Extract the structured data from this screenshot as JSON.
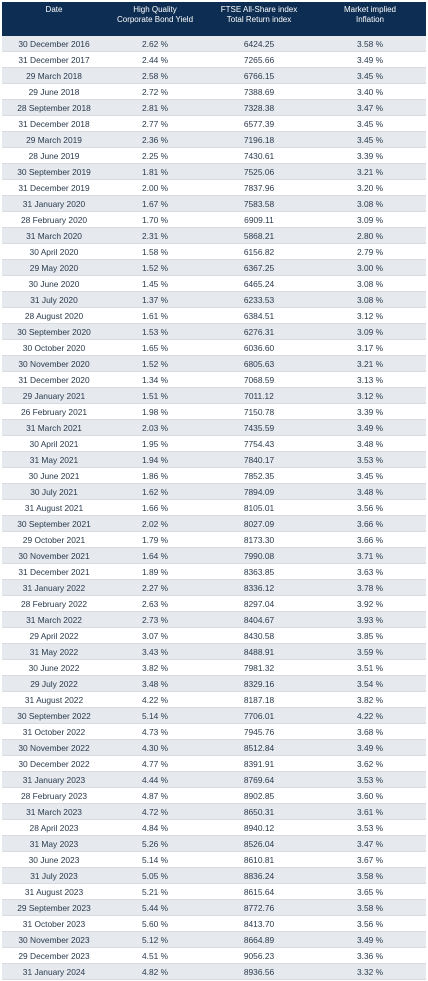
{
  "table": {
    "header": [
      [
        "Date"
      ],
      [
        "High Quality",
        "Corporate Bond Yield"
      ],
      [
        "FTSE All-Share index",
        "Total Return index"
      ],
      [
        "Market implied",
        "Inflation"
      ]
    ],
    "rows": [
      [
        "30 December 2016",
        "2.62 %",
        "6424.25",
        "3.58 %"
      ],
      [
        "31 December 2017",
        "2.44 %",
        "7265.66",
        "3.49 %"
      ],
      [
        "29 March 2018",
        "2.58 %",
        "6766.15",
        "3.45 %"
      ],
      [
        "29 June 2018",
        "2.72 %",
        "7388.69",
        "3.40 %"
      ],
      [
        "28 September 2018",
        "2.81 %",
        "7328.38",
        "3.47 %"
      ],
      [
        "31 December 2018",
        "2.77 %",
        "6577.39",
        "3.45 %"
      ],
      [
        "29 March 2019",
        "2.36 %",
        "7196.18",
        "3.45 %"
      ],
      [
        "28 June 2019",
        "2.25 %",
        "7430.61",
        "3.39 %"
      ],
      [
        "30 September 2019",
        "1.81 %",
        "7525.06",
        "3.21 %"
      ],
      [
        "31 December 2019",
        "2.00 %",
        "7837.96",
        "3.20 %"
      ],
      [
        "31 January 2020",
        "1.67 %",
        "7583.58",
        "3.08 %"
      ],
      [
        "28 February 2020",
        "1.70 %",
        "6909.11",
        "3.09 %"
      ],
      [
        "31 March 2020",
        "2.31 %",
        "5868.21",
        "2.80 %"
      ],
      [
        "30 April 2020",
        "1.58 %",
        "6156.82",
        "2.79 %"
      ],
      [
        "29 May 2020",
        "1.52 %",
        "6367.25",
        "3.00 %"
      ],
      [
        "30 June 2020",
        "1.45 %",
        "6465.24",
        "3.08 %"
      ],
      [
        "31 July 2020",
        "1.37 %",
        "6233.53",
        "3.08 %"
      ],
      [
        "28 August 2020",
        "1.61 %",
        "6384.51",
        "3.12 %"
      ],
      [
        "30 September 2020",
        "1.53 %",
        "6276.31",
        "3.09 %"
      ],
      [
        "30 October 2020",
        "1.65 %",
        "6036.60",
        "3.17 %"
      ],
      [
        "30 November 2020",
        "1.52 %",
        "6805.63",
        "3.21 %"
      ],
      [
        "31 December 2020",
        "1.34 %",
        "7068.59",
        "3.13 %"
      ],
      [
        "29 January 2021",
        "1.51 %",
        "7011.12",
        "3.12 %"
      ],
      [
        "26 February 2021",
        "1.98 %",
        "7150.78",
        "3.39 %"
      ],
      [
        "31 March 2021",
        "2.03 %",
        "7435.59",
        "3.49 %"
      ],
      [
        "30 April 2021",
        "1.95 %",
        "7754.43",
        "3.48 %"
      ],
      [
        "31 May 2021",
        "1.94 %",
        "7840.17",
        "3.53 %"
      ],
      [
        "30 June 2021",
        "1.86 %",
        "7852.35",
        "3.45 %"
      ],
      [
        "30 July 2021",
        "1.62 %",
        "7894.09",
        "3.48 %"
      ],
      [
        "31 August 2021",
        "1.66 %",
        "8105.01",
        "3.56 %"
      ],
      [
        "30 September 2021",
        "2.02 %",
        "8027.09",
        "3.66 %"
      ],
      [
        "29 October 2021",
        "1.79 %",
        "8173.30",
        "3.66 %"
      ],
      [
        "30 November 2021",
        "1.64 %",
        "7990.08",
        "3.71 %"
      ],
      [
        "31 December 2021",
        "1.89 %",
        "8363.85",
        "3.63 %"
      ],
      [
        "31 January 2022",
        "2.27 %",
        "8336.12",
        "3.78 %"
      ],
      [
        "28 February 2022",
        "2.63 %",
        "8297.04",
        "3.92 %"
      ],
      [
        "31 March 2022",
        "2.73 %",
        "8404.67",
        "3.93 %"
      ],
      [
        "29 April 2022",
        "3.07 %",
        "8430.58",
        "3.85 %"
      ],
      [
        "31 May 2022",
        "3.43 %",
        "8488.91",
        "3.59 %"
      ],
      [
        "30 June 2022",
        "3.82 %",
        "7981.32",
        "3.51 %"
      ],
      [
        "29 July 2022",
        "3.48 %",
        "8329.16",
        "3.54 %"
      ],
      [
        "31 August 2022",
        "4.22 %",
        "8187.18",
        "3.82 %"
      ],
      [
        "30 September 2022",
        "5.14 %",
        "7706.01",
        "4.22 %"
      ],
      [
        "31 October 2022",
        "4.73 %",
        "7945.76",
        "3.68 %"
      ],
      [
        "30 November 2022",
        "4.30 %",
        "8512.84",
        "3.49 %"
      ],
      [
        "30 December 2022",
        "4.77 %",
        "8391.91",
        "3.62 %"
      ],
      [
        "31 January 2023",
        "4.44 %",
        "8769.64",
        "3.53 %"
      ],
      [
        "28 February 2023",
        "4.87 %",
        "8902.85",
        "3.60 %"
      ],
      [
        "31 March 2023",
        "4.72 %",
        "8650.31",
        "3.61 %"
      ],
      [
        "28 April 2023",
        "4.84 %",
        "8940.12",
        "3.53 %"
      ],
      [
        "31 May 2023",
        "5.26 %",
        "8526.04",
        "3.47 %"
      ],
      [
        "30 June 2023",
        "5.14 %",
        "8610.81",
        "3.67 %"
      ],
      [
        "31 July 2023",
        "5.05 %",
        "8836.24",
        "3.58 %"
      ],
      [
        "31 August 2023",
        "5.21 %",
        "8615.64",
        "3.65 %"
      ],
      [
        "29 September 2023",
        "5.44 %",
        "8772.76",
        "3.58 %"
      ],
      [
        "31 October 2023",
        "5.60 %",
        "8413.70",
        "3.56 %"
      ],
      [
        "30 November 2023",
        "5.12 %",
        "8664.89",
        "3.49 %"
      ],
      [
        "29 December 2023",
        "4.51 %",
        "9056.23",
        "3.36 %"
      ],
      [
        "31 January 2024",
        "4.82 %",
        "8936.56",
        "3.32 %"
      ]
    ]
  }
}
